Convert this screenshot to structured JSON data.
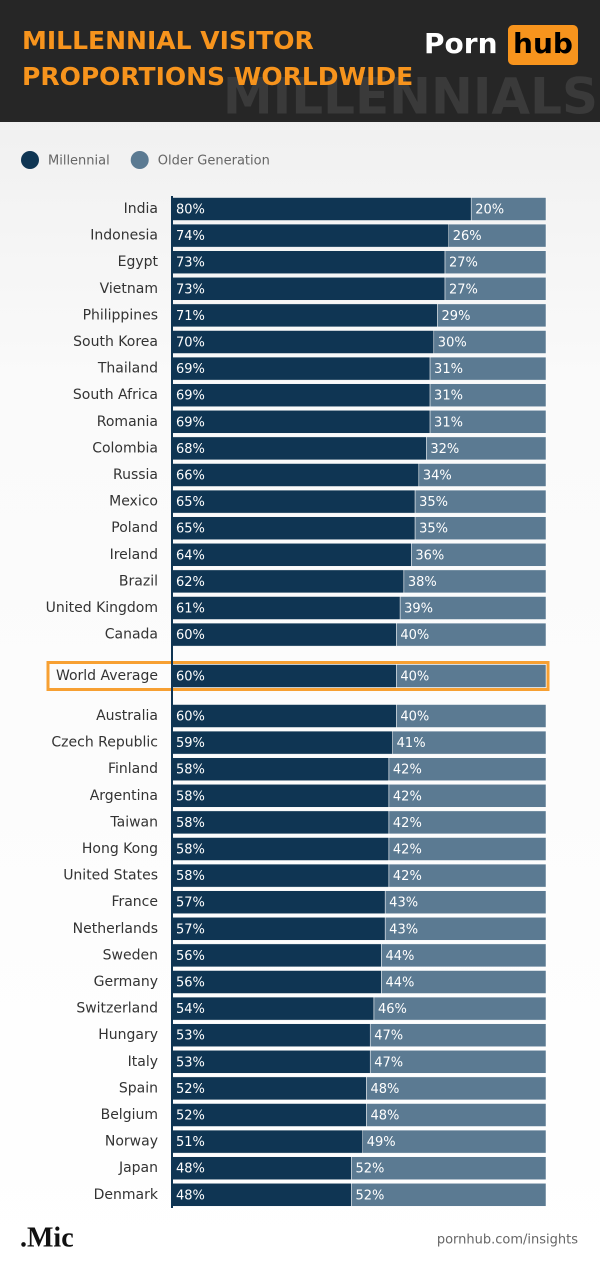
{
  "header": {
    "title": [
      "MILLENNIAL VISITOR",
      "PROPORTIONS WORLDWIDE"
    ],
    "logo": [
      "Porn",
      "hub"
    ],
    "watermark": "MILLENNIALS"
  },
  "chart_data": {
    "type": "stacked-bar",
    "categories": [
      "India",
      "Indonesia",
      "Egypt",
      "Vietnam",
      "Philippines",
      "South Korea",
      "Thailand",
      "South Africa",
      "Romania",
      "Colombia",
      "Russia",
      "Mexico",
      "Poland",
      "Ireland",
      "Brazil",
      "United Kingdom",
      "Canada",
      "World Average",
      "Australia",
      "Czech Republic",
      "Finland",
      "Argentina",
      "Taiwan",
      "Hong Kong",
      "United States",
      "France",
      "Netherlands",
      "Sweden",
      "Germany",
      "Switzerland",
      "Hungary",
      "Italy",
      "Spain",
      "Belgium",
      "Norway",
      "Japan",
      "Denmark"
    ],
    "highlight_category": 17,
    "highlight_color": "#f7a032",
    "xlim": [
      0,
      100
    ],
    "series": [
      {
        "name": "Millennial",
        "color": "#0f3553",
        "values": [
          80,
          74,
          73,
          73,
          71,
          70,
          69,
          69,
          69,
          68,
          66,
          65,
          65,
          64,
          62,
          61,
          60,
          60,
          60,
          59,
          58,
          58,
          58,
          58,
          58,
          57,
          57,
          56,
          56,
          54,
          53,
          53,
          52,
          52,
          51,
          48,
          48
        ],
        "value_labels": [
          "80%",
          "74%",
          "73%",
          "73%",
          "71%",
          "70%",
          "69%",
          "69%",
          "69%",
          "68%",
          "66%",
          "65%",
          "65%",
          "64%",
          "62%",
          "61%",
          "60%",
          "60%",
          "60%",
          "59%",
          "58%",
          "58%",
          "58%",
          "58%",
          "58%",
          "57%",
          "57%",
          "56%",
          "56%",
          "54%",
          "53%",
          "53%",
          "52%",
          "52%",
          "51%",
          "48%",
          "48%"
        ]
      },
      {
        "name": "Older Generation",
        "color": "#5b7a92",
        "values": [
          20,
          26,
          27,
          27,
          29,
          30,
          31,
          31,
          31,
          32,
          34,
          35,
          35,
          36,
          38,
          39,
          40,
          40,
          40,
          41,
          42,
          42,
          42,
          42,
          42,
          43,
          43,
          44,
          44,
          46,
          47,
          47,
          48,
          48,
          49,
          52,
          52
        ],
        "value_labels": [
          "20%",
          "26%",
          "27%",
          "27%",
          "29%",
          "30%",
          "31%",
          "31%",
          "31%",
          "32%",
          "34%",
          "35%",
          "35%",
          "36%",
          "38%",
          "39%",
          "40%",
          "40%",
          "40%",
          "41%",
          "42%",
          "42%",
          "42%",
          "42%",
          "42%",
          "43%",
          "43%",
          "44%",
          "44%",
          "46%",
          "47%",
          "47%",
          "48%",
          "48%",
          "49%",
          "52%",
          "52%"
        ]
      }
    ]
  },
  "footer": {
    "source": ".Mic",
    "url": "pornhub.com/insights"
  }
}
